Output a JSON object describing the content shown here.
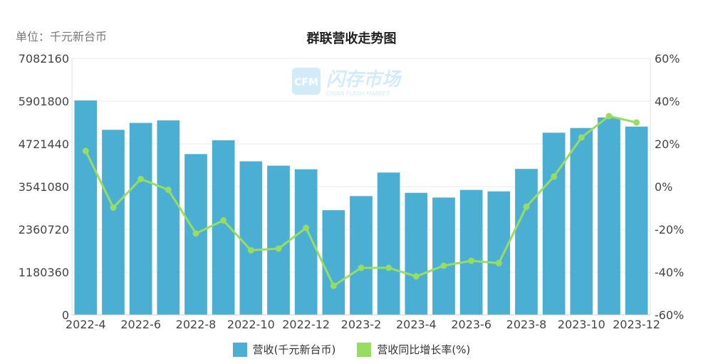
{
  "unit_label": "单位：千元新台币",
  "chart_data": {
    "type": "bar",
    "title": "群联营收走势图",
    "categories": [
      "2022-4",
      "2022-5",
      "2022-6",
      "2022-7",
      "2022-8",
      "2022-9",
      "2022-10",
      "2022-11",
      "2022-12",
      "2023-1",
      "2023-2",
      "2023-3",
      "2023-4",
      "2023-5",
      "2023-6",
      "2023-7",
      "2023-8",
      "2023-9",
      "2023-10",
      "2023-11",
      "2023-12"
    ],
    "x_tick_labels": [
      "2022-4",
      "2022-6",
      "2022-8",
      "2022-10",
      "2022-12",
      "2023-2",
      "2023-4",
      "2023-6",
      "2023-8",
      "2023-10",
      "2023-12"
    ],
    "series": [
      {
        "name": "营收(千元新台币)",
        "type": "bar",
        "axis": "left",
        "color": "#4bafd4",
        "values": [
          5920000,
          5110000,
          5300000,
          5370000,
          4440000,
          4820000,
          4240000,
          4120000,
          4020000,
          2890000,
          3280000,
          3930000,
          3370000,
          3240000,
          3450000,
          3410000,
          4030000,
          5030000,
          5160000,
          5450000,
          5200000
        ]
      },
      {
        "name": "营收同比增长率(%)",
        "type": "line",
        "axis": "right",
        "color": "#96dd62",
        "values": [
          16.7,
          -9.8,
          3.6,
          -1.5,
          -21.9,
          -15.8,
          -29.8,
          -29.0,
          -19.3,
          -46.4,
          -38.0,
          -38.0,
          -42.0,
          -37.0,
          -34.7,
          -35.8,
          -9.4,
          4.7,
          23.0,
          33.0,
          30.0
        ]
      }
    ],
    "y_left": {
      "ticks": [
        "0",
        "1180360",
        "2360720",
        "3541080",
        "4721440",
        "5901800",
        "7082160"
      ],
      "ylim": [
        0,
        7082160
      ]
    },
    "y_right": {
      "ticks": [
        "-60%",
        "-40%",
        "-20%",
        "0%",
        "20%",
        "40%",
        "60%"
      ],
      "ylim": [
        -60,
        60
      ]
    },
    "grid": true,
    "legend_position": "bottom"
  },
  "watermark": {
    "logo_text": "CFM",
    "name": "闪存市场",
    "sub": "CHINA FLASH MARKET"
  }
}
